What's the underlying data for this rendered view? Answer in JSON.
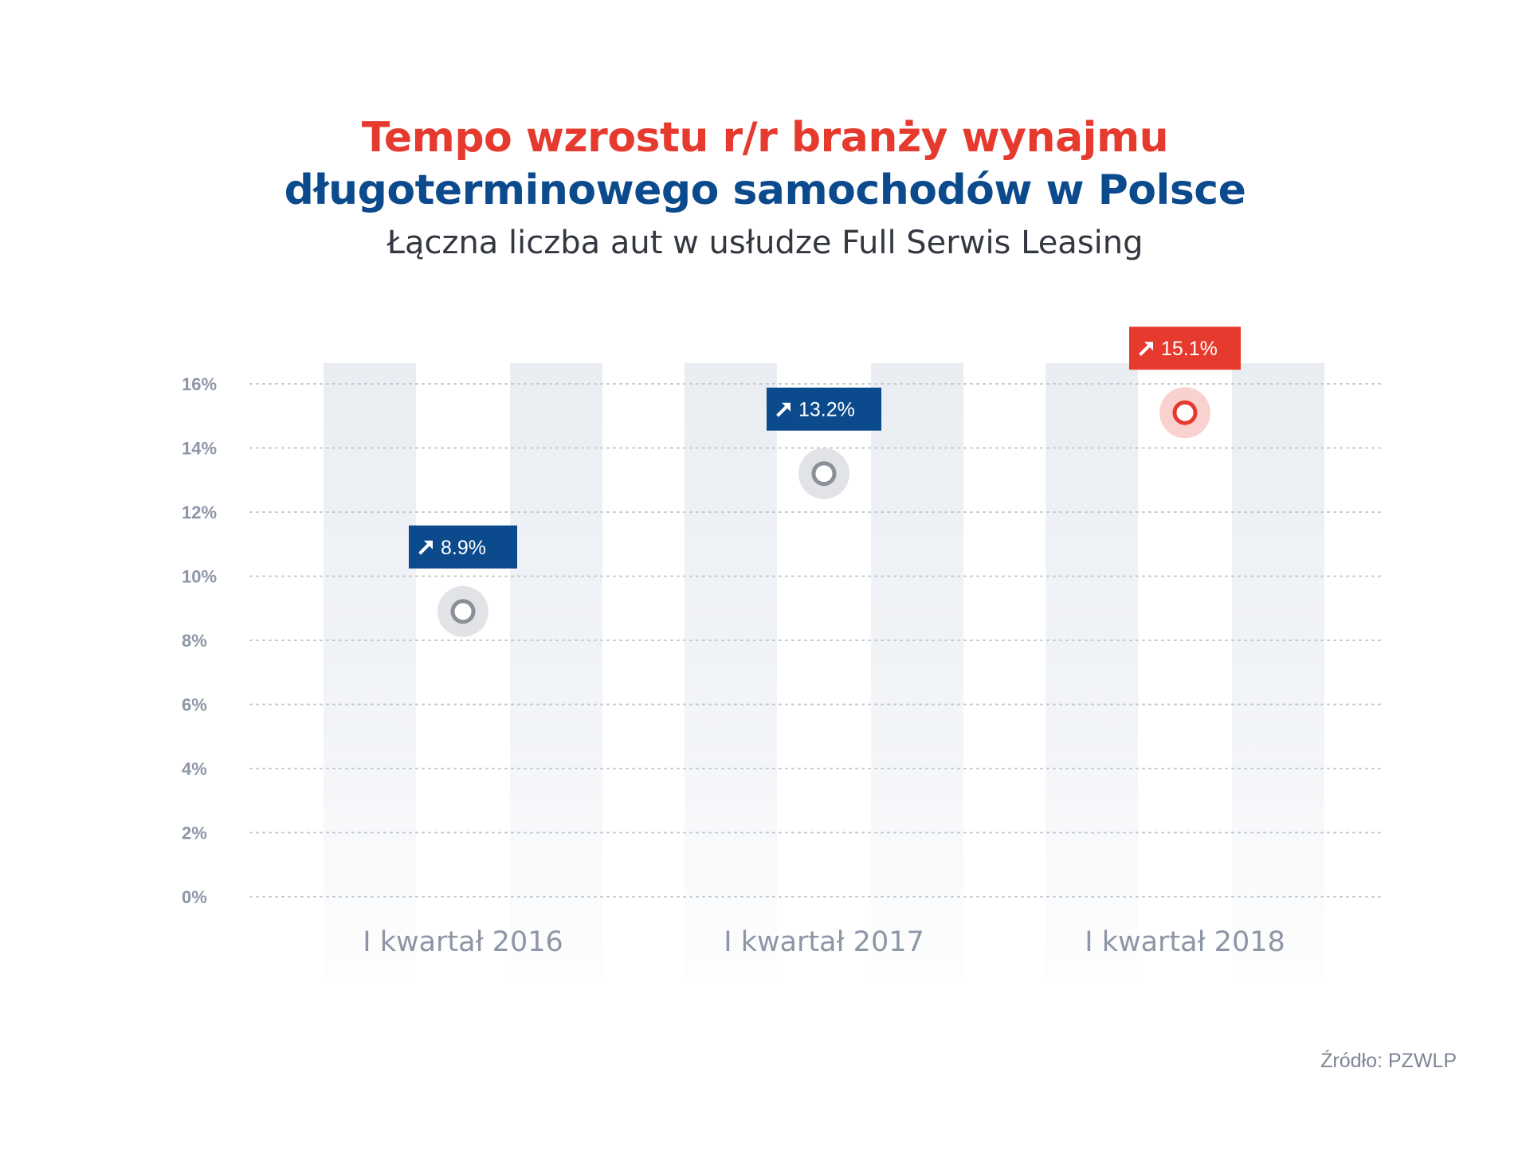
{
  "title": {
    "line1": "Tempo wzrostu r/r branży wynajmu",
    "line2": "długoterminowego samochodów w Polsce"
  },
  "subtitle": "Łączna liczba aut w usłudze Full Serwis Leasing",
  "source": "Źródło: PZWLP",
  "colors": {
    "red": "#e63a2e",
    "blue": "#0b4a8c",
    "stem_gray": "#a2abba",
    "marker_gray": "#8a8f98",
    "grid": "#c3c9d2",
    "band": "#e9edf2",
    "axis_text": "#8d96a6"
  },
  "chart_data": {
    "type": "lollipop",
    "categories": [
      "I kwartał 2016",
      "I kwartał 2017",
      "I kwartał 2018"
    ],
    "values": [
      8.9,
      13.2,
      15.1
    ],
    "data_labels": [
      "8.9%",
      "13.2%",
      "15.1%"
    ],
    "highlight_index": 2,
    "y_ticks": [
      "0%",
      "2%",
      "4%",
      "6%",
      "8%",
      "10%",
      "12%",
      "14%",
      "16%"
    ],
    "y_tick_values": [
      0,
      2,
      4,
      6,
      8,
      10,
      12,
      14,
      16
    ],
    "ylim": [
      0,
      16
    ],
    "grid": true,
    "label_icon": "arrow-up-right-icon"
  }
}
